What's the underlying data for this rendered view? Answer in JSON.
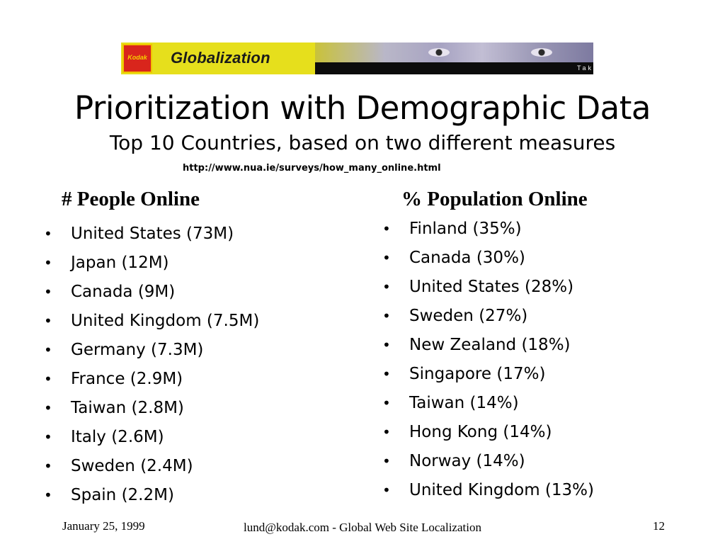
{
  "banner": {
    "logo_text": "Kodak",
    "title": "Globalization",
    "tagline": "Take Pictures. Further.™"
  },
  "slide": {
    "title": "Prioritization with Demographic Data",
    "subtitle": "Top 10 Countries, based on two different measures",
    "source_url": "http://www.nua.ie/surveys/how_many_online.html"
  },
  "columns": {
    "left": {
      "heading": "# People Online",
      "items": [
        "United States (73M)",
        "Japan (12M)",
        "Canada (9M)",
        "United Kingdom (7.5M)",
        "Germany (7.3M)",
        "France (2.9M)",
        "Taiwan (2.8M)",
        "Italy (2.6M)",
        "Sweden (2.4M)",
        "Spain (2.2M)"
      ]
    },
    "right": {
      "heading": "% Population Online",
      "items": [
        "Finland (35%)",
        "Canada (30%)",
        "United States (28%)",
        "Sweden (27%)",
        "New Zealand (18%)",
        "Singapore (17%)",
        "Taiwan (14%)",
        "Hong Kong (14%)",
        "Norway (14%)",
        "United Kingdom (13%)"
      ]
    }
  },
  "bullet_glyph": "•",
  "footer": {
    "date": "January 25, 1999",
    "center": "lund@kodak.com - Global Web Site Localization",
    "page": "12"
  },
  "colors": {
    "banner_yellow": "#e6df1c",
    "kodak_red": "#d9251c",
    "banner_black": "#0c0c0c"
  }
}
